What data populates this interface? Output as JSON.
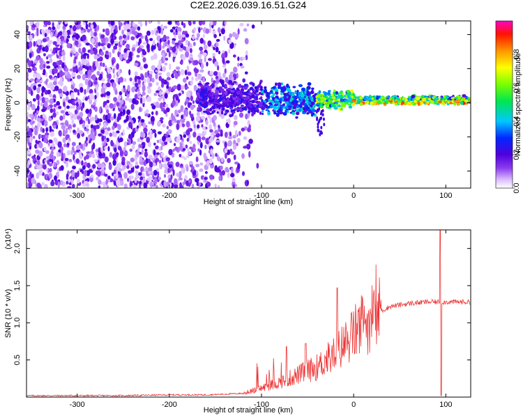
{
  "chart_data": [
    {
      "type": "heatmap",
      "title": "C2E2.2026.039.16.51.G24",
      "xlabel": "Height of straight line (km)",
      "ylabel": "Frequency (Hz)",
      "xlim": [
        -355,
        127
      ],
      "ylim": [
        -50,
        48
      ],
      "xticks": [
        -300,
        -200,
        -100,
        0,
        100
      ],
      "yticks": [
        -40,
        -20,
        0,
        20,
        40
      ],
      "colorbar": {
        "label": "Normalized spectral amplitude",
        "range": [
          0.0,
          1.0
        ],
        "ticks": [
          0.0,
          0.2,
          0.4,
          0.6,
          0.8
        ],
        "tick_labels": [
          "0.0",
          "0.2",
          "0.4",
          "0.6",
          "0.8"
        ],
        "colormap": "gist_ncar-like (white-purple-blue-cyan-green-yellow-orange-red-magenta)"
      },
      "features": [
        {
          "region": "x < -140 km",
          "description": "scattered low-amplitude purple noise across all frequencies"
        },
        {
          "region": "-140 to -40 km",
          "description": "signal emerging near 0 Hz, spread about +/-10 Hz"
        },
        {
          "region": "x > -30 km",
          "description": "narrow strong line near 0 Hz, amplitude about 0.8-1.0"
        }
      ]
    },
    {
      "type": "line",
      "title": "",
      "xlabel": "Height of straight line (km)",
      "ylabel": "SNR (10 * v/v)",
      "y_multiplier": "(x10⁴)",
      "xlim": [
        -355,
        127
      ],
      "ylim": [
        0,
        2.25
      ],
      "xticks": [
        -300,
        -200,
        -100,
        0,
        100
      ],
      "yticks": [
        0.5,
        1.0,
        1.5,
        2.0
      ],
      "color": "#ee3333",
      "series": [
        {
          "name": "SNR",
          "x": [
            -355,
            -300,
            -250,
            -200,
            -160,
            -140,
            -120,
            -100,
            -90,
            -80,
            -70,
            -60,
            -50,
            -40,
            -30,
            -20,
            -10,
            0,
            10,
            20,
            30,
            40,
            60,
            80,
            90,
            100,
            110,
            127
          ],
          "values": [
            0.02,
            0.02,
            0.02,
            0.03,
            0.03,
            0.04,
            0.05,
            0.12,
            0.16,
            0.2,
            0.25,
            0.3,
            0.35,
            0.4,
            0.5,
            0.58,
            0.72,
            0.85,
            0.98,
            1.08,
            1.16,
            1.22,
            1.26,
            1.28,
            1.28,
            1.28,
            1.28,
            1.28
          ],
          "spikes": [
            {
              "x": -18,
              "peak": 1.47
            },
            {
              "x": -52,
              "peak": 0.72
            },
            {
              "x": -73,
              "peak": 0.68
            },
            {
              "x": 94,
              "peak": 2.25,
              "trough": 0.02
            }
          ]
        }
      ]
    }
  ]
}
